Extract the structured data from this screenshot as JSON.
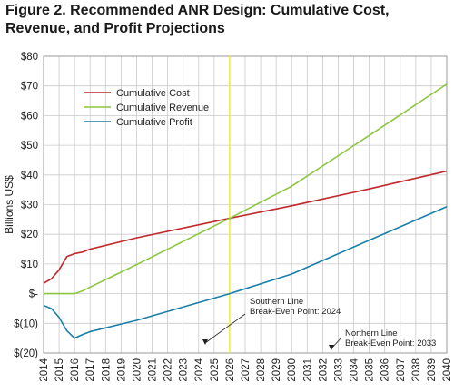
{
  "chart_data": {
    "type": "line",
    "title": "Figure 2. Recommended ANR Design: Cumulative Cost, Revenue, and Profit Projections",
    "ylabel": "Billions US$",
    "xlabel": "",
    "ylim": [
      -20,
      80
    ],
    "xlim": [
      2014,
      2040
    ],
    "grid": true,
    "legend_position": "top-left",
    "y_ticks": [
      "$(20)",
      "$(10)",
      "$-",
      "$10",
      "$20",
      "$30",
      "$40",
      "$50",
      "$60",
      "$70",
      "$80"
    ],
    "y_tick_values": [
      -20,
      -10,
      0,
      10,
      20,
      30,
      40,
      50,
      60,
      70,
      80
    ],
    "x_ticks": [
      "2014",
      "2015",
      "2016",
      "2017",
      "2018",
      "2019",
      "2020",
      "2021",
      "2022",
      "2023",
      "2024",
      "2025",
      "2026",
      "2027",
      "2028",
      "2029",
      "2030",
      "2031",
      "2032",
      "2033",
      "2034",
      "2035",
      "2036",
      "2037",
      "2038",
      "2039",
      "2040"
    ],
    "series": [
      {
        "name": "Cumulative Cost",
        "color": "#c0282d",
        "x": [
          2014,
          2014.5,
          2015,
          2015.5,
          2016,
          2016.5,
          2017,
          2020,
          2026,
          2030,
          2035,
          2040
        ],
        "y": [
          3.5,
          5,
          8,
          12.5,
          13.5,
          14,
          15,
          18.8,
          25.4,
          29.6,
          35.3,
          41.3
        ]
      },
      {
        "name": "Cumulative Revenue",
        "color": "#8dc63f",
        "x": [
          2014,
          2015,
          2016,
          2016.5,
          2017,
          2020,
          2026,
          2030,
          2035,
          2040
        ],
        "y": [
          0,
          0,
          0,
          0.9,
          2.2,
          9.8,
          25.4,
          36.2,
          53.3,
          70.6
        ]
      },
      {
        "name": "Cumulative Profit",
        "color": "#1a7fa8",
        "x": [
          2014,
          2014.5,
          2015,
          2015.5,
          2016,
          2016.5,
          2017,
          2020,
          2026,
          2030,
          2035,
          2040
        ],
        "y": [
          -4,
          -5,
          -8,
          -12.5,
          -15,
          -13.8,
          -12.8,
          -9,
          0,
          6.6,
          18,
          29.3
        ]
      }
    ],
    "vertical_line": {
      "x": 2026,
      "color": "#f5e642"
    },
    "annotations": [
      {
        "lines": [
          "Southern Line",
          "Break-Even Point: 2024"
        ],
        "x": 2024
      },
      {
        "lines": [
          "Northern Line",
          "Break-Even Point: 2033"
        ],
        "x": 2033
      }
    ]
  }
}
